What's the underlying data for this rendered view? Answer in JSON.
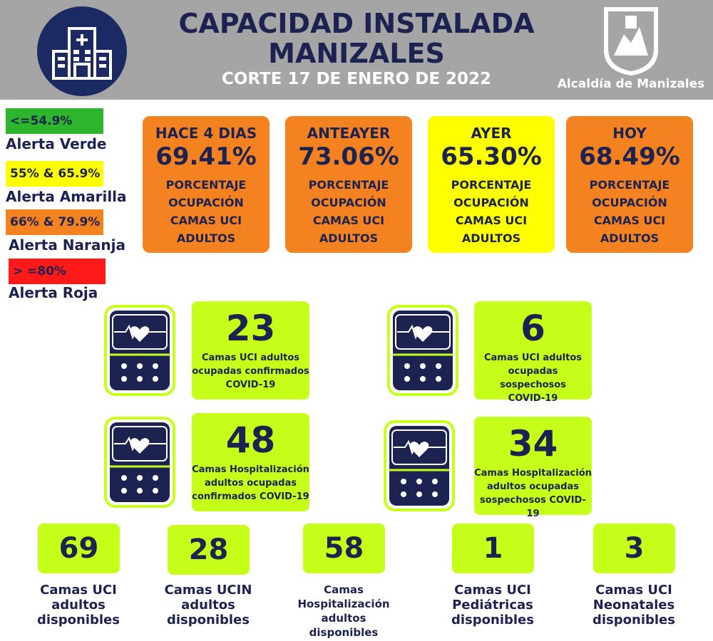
{
  "header": {
    "title_line1": "CAPACIDAD INSTALADA",
    "title_line2": "MANIZALES",
    "date_line": "CORTE 17 DE ENERO DE 2022",
    "brand": "Alcaldía de Manizales"
  },
  "legend": [
    {
      "range": "<=54.9%",
      "label": "Alerta Verde",
      "color": "#2db52d"
    },
    {
      "range": "55% & 65.9%",
      "label": "Alerta Amarilla",
      "color": "#ffff00"
    },
    {
      "range": "66% & 79.9%",
      "label": "Alerta Naranja",
      "color": "#f58220"
    },
    {
      "range": "> =80%",
      "label": "Alerta Roja",
      "color": "#ff1a1a"
    }
  ],
  "days": [
    {
      "day": "HACE 4 DIAS",
      "value": "69.41%",
      "line1": "PORCENTAJE",
      "line2": "OCUPACIÓN",
      "line3": "CAMAS UCI",
      "line4": "ADULTOS",
      "color": "#f58220"
    },
    {
      "day": "ANTEAYER",
      "value": "73.06%",
      "line1": "PORCENTAJE",
      "line2": "OCUPACIÓN",
      "line3": "CAMAS UCI",
      "line4": "ADULTOS",
      "color": "#f58220"
    },
    {
      "day": "AYER",
      "value": "65.30%",
      "line1": "PORCENTAJE",
      "line2": "OCUPACIÓN",
      "line3": "CAMAS UCI",
      "line4": "ADULTOS",
      "color": "#ffff00"
    },
    {
      "day": "HOY",
      "value": "68.49%",
      "line1": "PORCENTAJE",
      "line2": "OCUPACIÓN",
      "line3": "CAMAS UCI",
      "line4": "ADULTOS",
      "color": "#f58220"
    }
  ],
  "stats": [
    {
      "value": "23",
      "line1": "Camas UCI adultos",
      "line2": "ocupadas confirmados",
      "line3": "COVID-19"
    },
    {
      "value": "6",
      "line1": "Camas UCI adultos",
      "line2": "ocupadas sospechosos",
      "line3": "COVID-19"
    },
    {
      "value": "48",
      "line1": "Camas  Hospitalización",
      "line2": "adultos ocupadas",
      "line3": "confirmados COVID-19"
    },
    {
      "value": "34",
      "line1": "Camas  Hospitalización",
      "line2": "adultos ocupadas",
      "line3": "sospechosos COVID-19"
    }
  ],
  "bottom": [
    {
      "value": "69",
      "line1": "Camas UCI",
      "line2": "adultos",
      "line3": "disponibles",
      "line4": ""
    },
    {
      "value": "28",
      "line1": "Camas UCIN",
      "line2": "adultos",
      "line3": "disponibles",
      "line4": ""
    },
    {
      "value": "58",
      "line1": "Camas",
      "line2": "Hospitalización",
      "line3": "adultos",
      "line4": "disponibles"
    },
    {
      "value": "1",
      "line1": "Camas  UCI",
      "line2": "Pediátricas",
      "line3": "disponibles",
      "line4": ""
    },
    {
      "value": "3",
      "line1": "Camas  UCI",
      "line2": "Neonatales",
      "line3": "disponibles",
      "line4": ""
    }
  ],
  "colors": {
    "navy": "#1c2350",
    "lime": "#c6ff1a",
    "header": "#a5a5a5"
  }
}
